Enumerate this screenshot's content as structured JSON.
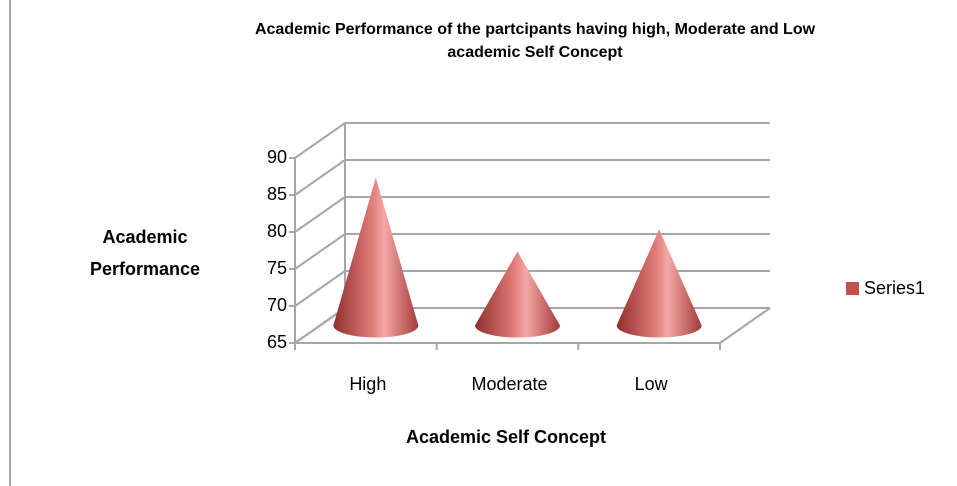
{
  "chart_data": {
    "type": "cone3d",
    "title": [
      "Academic Performance of the partcipants having high, Moderate and Low",
      "academic Self Concept"
    ],
    "x_label": "Academic Self Concept",
    "y_label": [
      "Academic",
      "Performance"
    ],
    "categories": [
      "High",
      "Moderate",
      "Low"
    ],
    "series": [
      {
        "name": "Series1",
        "color": "#c0504d",
        "values": [
          85,
          75,
          78
        ]
      }
    ],
    "ylim": [
      65,
      90
    ],
    "yticks": [
      65,
      70,
      75,
      80,
      85,
      90
    ],
    "grid": true,
    "legend": "right"
  }
}
